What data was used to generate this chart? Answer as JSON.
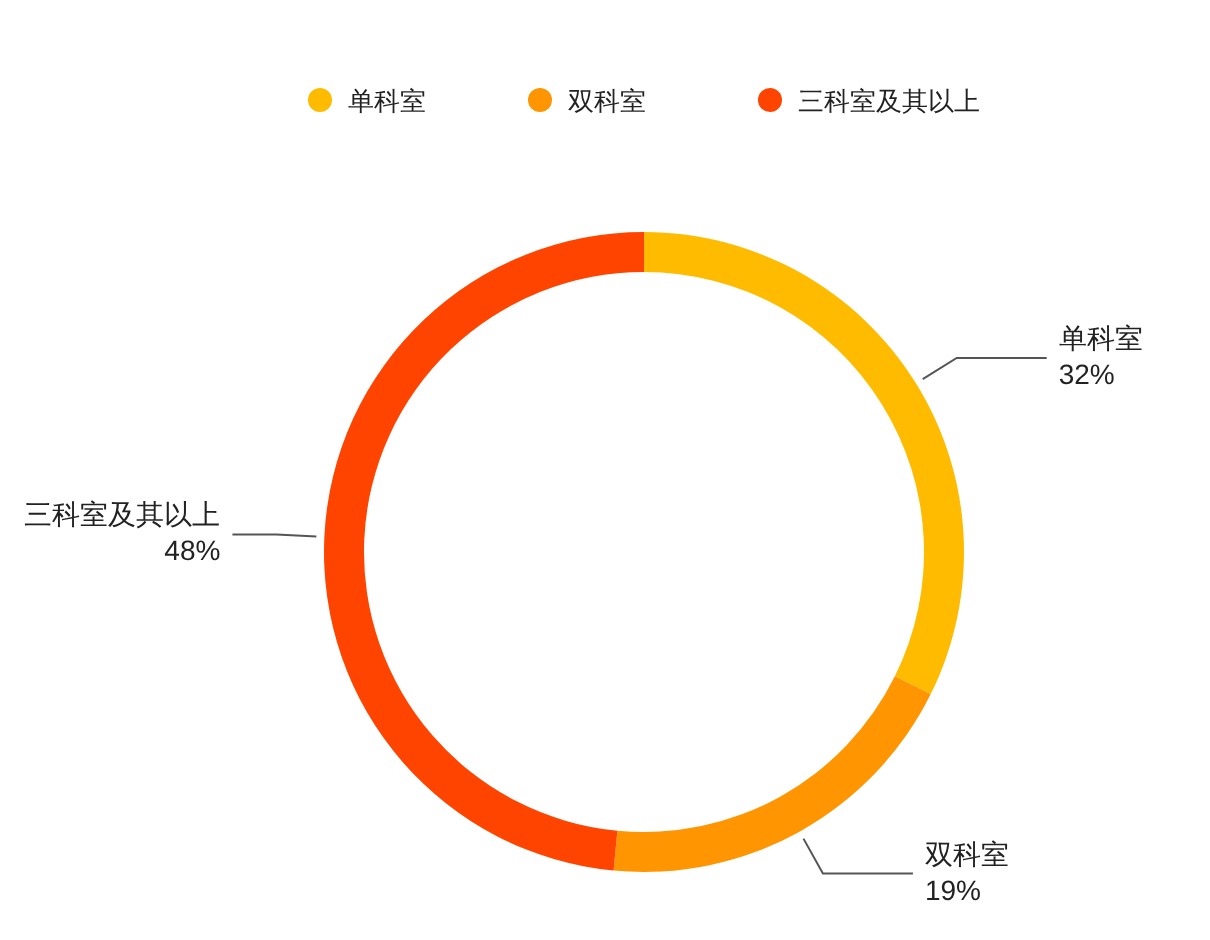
{
  "chart_data": {
    "type": "donut",
    "categories": [
      "单科室",
      "双科室",
      "三科室及其以上"
    ],
    "values": [
      32,
      19,
      48
    ],
    "colors": [
      "#ffbb00",
      "#ff9500",
      "#ff4400"
    ],
    "value_labels": [
      "32%",
      "19%",
      "48%"
    ],
    "legend": "top"
  }
}
